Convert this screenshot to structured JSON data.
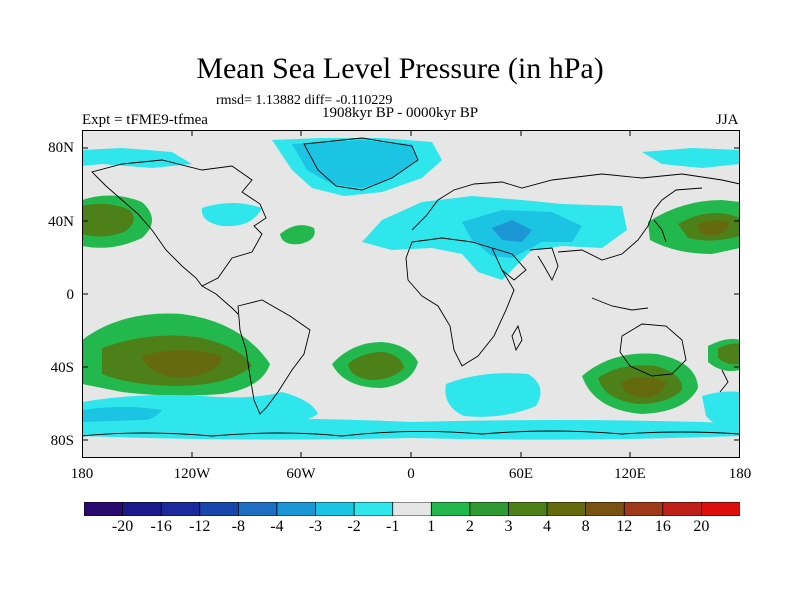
{
  "title": "Mean Sea Level Pressure (in hPa)",
  "stats_line": "rmsd= 1.13882 diff= -0.110229",
  "period_line": "1908kyr BP - 0000kyr BP",
  "experiment": "Expt = tFME9-tfmea",
  "season": "JJA",
  "lat_labels": [
    "80N",
    "40N",
    "0",
    "40S",
    "80S"
  ],
  "lon_labels": [
    "180",
    "120W",
    "60W",
    "0",
    "60E",
    "120E",
    "180"
  ],
  "colorbar": {
    "colors": [
      "#2a0a6e",
      "#1a1a8c",
      "#1c2a9e",
      "#1746ac",
      "#1f6ec4",
      "#1c96d4",
      "#1cc4e4",
      "#2ee6ec",
      "#e6e6e6",
      "#23b84e",
      "#2f9a32",
      "#4d8019",
      "#666a0f",
      "#7a5214",
      "#9e3a18",
      "#c0201a",
      "#dc0e0e"
    ],
    "labels": [
      "-20",
      "-16",
      "-12",
      "-8",
      "-4",
      "-3",
      "-2",
      "-1",
      "1",
      "2",
      "3",
      "4",
      "8",
      "12",
      "16",
      "20"
    ]
  },
  "map_colors": {
    "ocean": "#e6e6e6",
    "light_blue": "#2ee6ec",
    "mid_blue": "#1cc4e4",
    "dark_blue": "#1c96d4",
    "green": "#23b84e",
    "dark_green": "#4d8019",
    "brown": "#666a0f"
  }
}
